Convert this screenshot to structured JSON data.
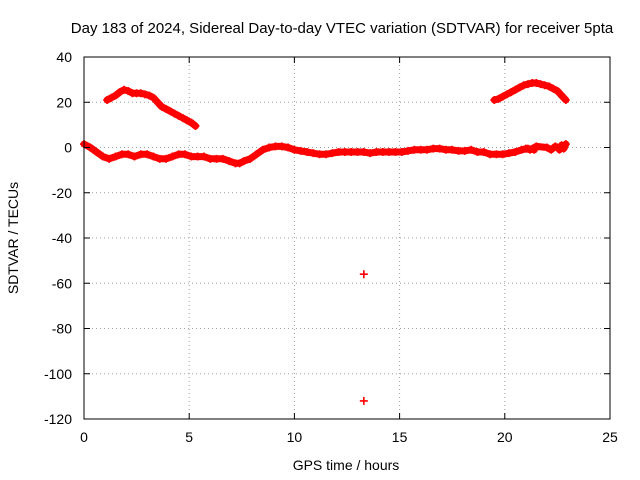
{
  "chart_data": {
    "type": "scatter",
    "title": "Day 183 of 2024, Sidereal Day-to-day VTEC variation (SDTVAR) for receiver 5pta",
    "xlabel": "GPS time / hours",
    "ylabel": "SDTVAR / TECUs",
    "xlim": [
      0,
      25
    ],
    "ylim": [
      -120,
      40
    ],
    "xticks": [
      0,
      5,
      10,
      15,
      20,
      25
    ],
    "yticks": [
      -120,
      -100,
      -80,
      -60,
      -40,
      -20,
      0,
      20,
      40
    ],
    "grid": true,
    "legend": "none",
    "marker": "plus",
    "color": "#ff0000",
    "series": [
      {
        "name": "main-band",
        "x": [
          0.0,
          0.3,
          0.6,
          0.9,
          1.2,
          1.5,
          1.8,
          2.1,
          2.4,
          2.7,
          3.0,
          3.3,
          3.6,
          3.9,
          4.2,
          4.5,
          4.8,
          5.1,
          5.4,
          5.7,
          6.0,
          6.3,
          6.6,
          6.9,
          7.2,
          7.4,
          7.6,
          7.9,
          8.2,
          8.5,
          8.8,
          9.1,
          9.4,
          9.7,
          10.0,
          10.3,
          10.6,
          10.9,
          11.2,
          11.5,
          11.8,
          12.1,
          12.4,
          12.7,
          13.0,
          13.3,
          13.6,
          13.9,
          14.2,
          14.5,
          14.8,
          15.1,
          15.4,
          15.7,
          16.0,
          16.3,
          16.6,
          16.9,
          17.2,
          17.5,
          17.8,
          18.1,
          18.4,
          18.7,
          19.0,
          19.3,
          19.6,
          19.9,
          20.2,
          20.5,
          20.8,
          21.1,
          21.4
        ],
        "y": [
          1.5,
          0,
          -2,
          -4,
          -5,
          -4,
          -3,
          -3,
          -4,
          -3,
          -3,
          -4,
          -5,
          -5,
          -4,
          -3,
          -3,
          -4,
          -4,
          -4,
          -5,
          -5,
          -5,
          -6,
          -7,
          -7,
          -6,
          -5,
          -3,
          -1,
          0,
          0.5,
          0.5,
          0,
          -1,
          -1.5,
          -2,
          -2.5,
          -3,
          -3,
          -2.5,
          -2,
          -2,
          -2,
          -2,
          -2,
          -2.5,
          -2,
          -2,
          -2,
          -2,
          -2,
          -1.5,
          -1,
          -1,
          -1,
          -0.5,
          -0.5,
          -1,
          -1,
          -1.5,
          -1.5,
          -1,
          -2,
          -2,
          -3,
          -3,
          -3,
          -2.5,
          -2,
          -1,
          -0.5,
          -1
        ]
      },
      {
        "name": "upper-arc-morning",
        "x": [
          1.1,
          1.3,
          1.5,
          1.7,
          1.9,
          2.1,
          2.3,
          2.5,
          2.7,
          2.9,
          3.1,
          3.3,
          3.5,
          3.7,
          3.9,
          4.1,
          4.3,
          4.5,
          4.7,
          4.9,
          5.1,
          5.3
        ],
        "y": [
          21,
          22,
          23,
          24.5,
          25.5,
          25,
          24,
          24,
          24,
          23.5,
          23,
          22,
          20,
          18,
          17,
          16,
          15,
          14,
          13,
          12,
          11,
          9.5
        ]
      },
      {
        "name": "upper-arc-evening",
        "x": [
          19.5,
          19.7,
          19.9,
          20.1,
          20.3,
          20.5,
          20.7,
          20.9,
          21.1,
          21.3,
          21.5,
          21.7,
          21.9,
          22.1,
          22.3,
          22.5,
          22.7,
          22.9
        ],
        "y": [
          21,
          21.5,
          22.5,
          23.5,
          24.5,
          25.5,
          26.5,
          27.5,
          28,
          28.5,
          28.5,
          28,
          27.5,
          27,
          26,
          25,
          23,
          21
        ]
      },
      {
        "name": "late-cluster",
        "x": [
          21.0,
          21.2,
          21.5,
          22.0,
          22.2,
          22.4,
          22.5,
          22.6,
          22.7,
          22.8,
          22.9
        ],
        "y": [
          -0.5,
          -1,
          0.5,
          0,
          -1,
          0.5,
          0,
          -1,
          1,
          -0.5,
          1.5
        ]
      },
      {
        "name": "outliers",
        "x": [
          13.3,
          13.3
        ],
        "y": [
          -56,
          -112
        ]
      }
    ]
  }
}
